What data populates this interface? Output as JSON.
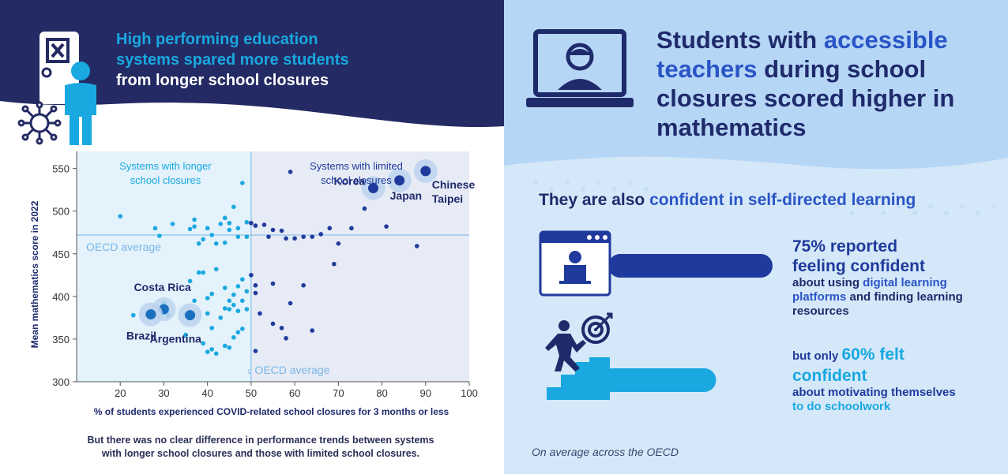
{
  "left": {
    "title_line1": "High performing education",
    "title_line2": "systems spared more students",
    "title_line3": "from longer school closures",
    "footnote_line1": "But there was no clear difference in performance trends between systems",
    "footnote_line2": "with longer school closures and those with limited school closures."
  },
  "right": {
    "title_pre": "Students with ",
    "title_hl": "accessible teachers",
    "title_post": " during school closures scored higher in mathematics",
    "subtitle_pre": "They are also ",
    "subtitle_hl": "confident in self-directed learning",
    "stat1_big_line1": "75% reported",
    "stat1_big_line2": "feeling confident",
    "stat1_small_pre": "about using ",
    "stat1_small_hl": "digital learning platforms",
    "stat1_small_post": " and finding learning resources",
    "stat1_value": 75,
    "stat2_lead": "but only ",
    "stat2_big_a": "60% felt",
    "stat2_big_b": "confident",
    "stat2_small_pre": "about ",
    "stat2_small_hl": "motivating themselves",
    "stat2_small_post": "to do schoolwork",
    "stat2_value": 60,
    "note": "On average across the OECD"
  },
  "colors": {
    "navy": "#1f2a6b",
    "cyan": "#19a8e0",
    "blue": "#1f3a9c",
    "light_panel": "#cfe4f8",
    "left_region": "#e3f2fb",
    "right_region": "#e6ebf5"
  },
  "icons": [
    "exam-paper-icon",
    "student-icon",
    "virus-icon",
    "laptop-teacher-icon",
    "browser-student-icon",
    "climbing-stairs-icon",
    "target-icon"
  ],
  "chart_data": {
    "type": "scatter",
    "xlabel": "% of students experienced COVID-related school closures for 3 months or less",
    "ylabel": "Mean mathematics score in 2022",
    "xlim": [
      10,
      100
    ],
    "ylim": [
      300,
      570
    ],
    "xticks": [
      20,
      30,
      40,
      50,
      60,
      70,
      80,
      90,
      100
    ],
    "yticks": [
      300,
      350,
      400,
      450,
      500,
      550
    ],
    "oecd_average_x": 50,
    "oecd_average_y": 472,
    "oecd_average_label": "OECD average",
    "region_left_label_line1": "Systems with longer",
    "region_left_label_line2": "school closures",
    "region_right_label_line1": "Systems with limited",
    "region_right_label_line2": "school closures",
    "legend": "none",
    "grid": false,
    "series": [
      {
        "group": "longer",
        "color": "#19a8e0",
        "points": [
          [
            20,
            494
          ],
          [
            28,
            480
          ],
          [
            29,
            471
          ],
          [
            32,
            485
          ],
          [
            36,
            479
          ],
          [
            37,
            490
          ],
          [
            37,
            482
          ],
          [
            38,
            462
          ],
          [
            39,
            467
          ],
          [
            40,
            480
          ],
          [
            41,
            472
          ],
          [
            42,
            462
          ],
          [
            43,
            485
          ],
          [
            44,
            492
          ],
          [
            45,
            486
          ],
          [
            46,
            505
          ],
          [
            44,
            463
          ],
          [
            45,
            478
          ],
          [
            47,
            470
          ],
          [
            48,
            533
          ],
          [
            47,
            480
          ],
          [
            49,
            487
          ],
          [
            49,
            470
          ],
          [
            38,
            428
          ],
          [
            36,
            418
          ],
          [
            39,
            428
          ],
          [
            40,
            398
          ],
          [
            41,
            403
          ],
          [
            42,
            432
          ],
          [
            44,
            410
          ],
          [
            46,
            402
          ],
          [
            47,
            412
          ],
          [
            48,
            420
          ],
          [
            48,
            395
          ],
          [
            49,
            406
          ],
          [
            44,
            386
          ],
          [
            40,
            380
          ],
          [
            41,
            363
          ],
          [
            43,
            375
          ],
          [
            45,
            385
          ],
          [
            46,
            390
          ],
          [
            47,
            383
          ],
          [
            49,
            385
          ],
          [
            23,
            378
          ],
          [
            27,
            383
          ],
          [
            30,
            392
          ],
          [
            35,
            378
          ],
          [
            35,
            355
          ],
          [
            39,
            345
          ],
          [
            41,
            338
          ],
          [
            42,
            333
          ],
          [
            44,
            342
          ],
          [
            45,
            340
          ],
          [
            46,
            352
          ],
          [
            47,
            358
          ],
          [
            48,
            362
          ],
          [
            40,
            335
          ],
          [
            31,
            378
          ],
          [
            45,
            395
          ],
          [
            37,
            395
          ]
        ]
      },
      {
        "group": "limited",
        "color": "#1f3a9c",
        "points": [
          [
            50,
            486
          ],
          [
            51,
            483
          ],
          [
            53,
            484
          ],
          [
            55,
            478
          ],
          [
            54,
            470
          ],
          [
            57,
            477
          ],
          [
            58,
            468
          ],
          [
            60,
            468
          ],
          [
            62,
            470
          ],
          [
            64,
            470
          ],
          [
            66,
            473
          ],
          [
            68,
            480
          ],
          [
            70,
            462
          ],
          [
            73,
            480
          ],
          [
            76,
            503
          ],
          [
            81,
            482
          ],
          [
            88,
            459
          ],
          [
            59,
            546
          ],
          [
            51,
            413
          ],
          [
            51,
            404
          ],
          [
            50,
            425
          ],
          [
            51,
            336
          ],
          [
            52,
            380
          ],
          [
            55,
            368
          ],
          [
            57,
            363
          ],
          [
            58,
            351
          ],
          [
            59,
            392
          ],
          [
            62,
            413
          ],
          [
            64,
            360
          ],
          [
            55,
            415
          ],
          [
            69,
            438
          ]
        ]
      }
    ],
    "highlighted": [
      {
        "label": "Korea",
        "x": 78,
        "y": 527
      },
      {
        "label": "Japan",
        "x": 84,
        "y": 536
      },
      {
        "label": "Chinese Taipei",
        "label_line1": "Chinese",
        "label_line2": "Taipei",
        "x": 90,
        "y": 547
      },
      {
        "label": "Costa Rica",
        "x": 30,
        "y": 385
      },
      {
        "label": "Brazil",
        "x": 27,
        "y": 379
      },
      {
        "label": "Argentina",
        "x": 36,
        "y": 378
      }
    ]
  }
}
